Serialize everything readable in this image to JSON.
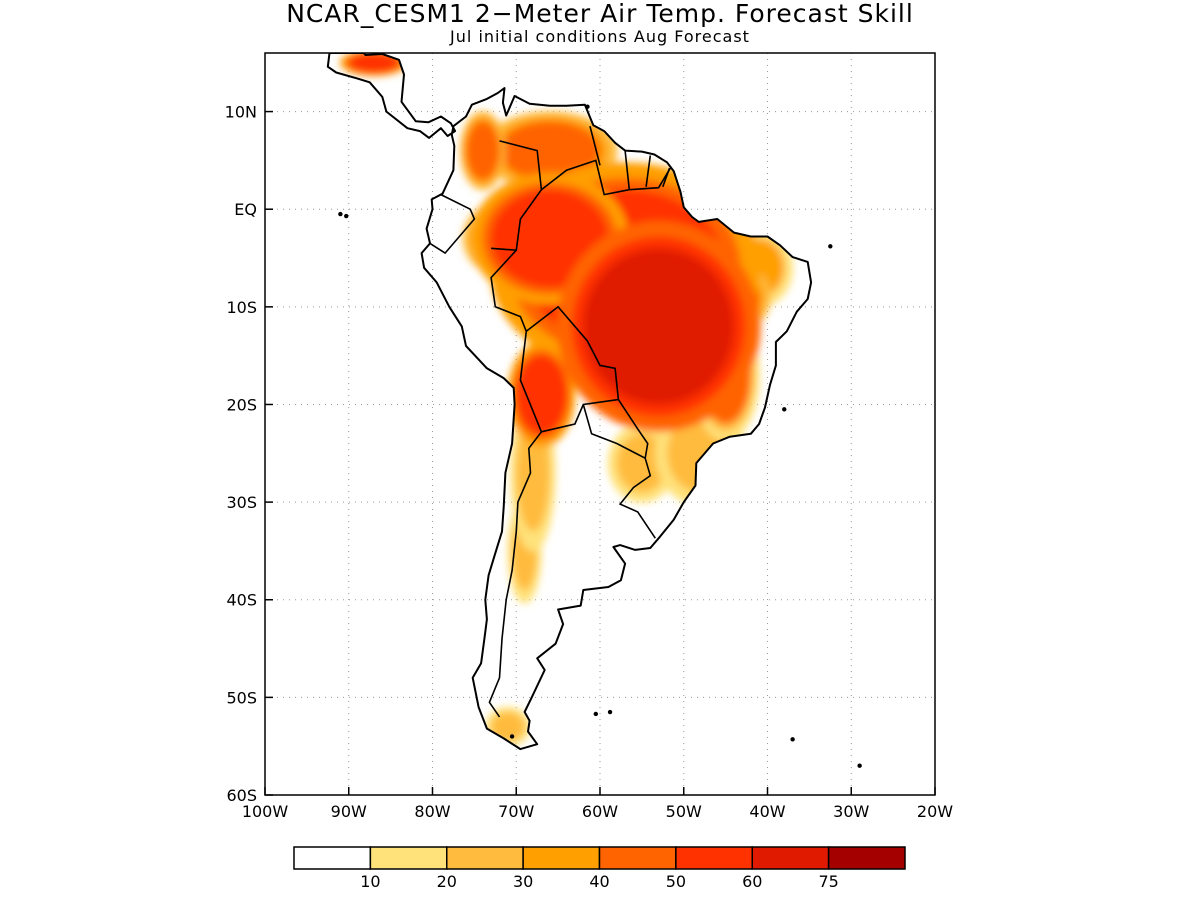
{
  "title": "NCAR_CESM1 2−Meter Air Temp. Forecast Skill",
  "subtitle": "Jul initial conditions  Aug Forecast",
  "chart_data": {
    "type": "heatmap",
    "map_region": "South America",
    "x_axis": {
      "range": [
        -100,
        -20
      ],
      "ticks": [
        {
          "value": -100,
          "label": "100W"
        },
        {
          "value": -90,
          "label": "90W"
        },
        {
          "value": -80,
          "label": "80W"
        },
        {
          "value": -70,
          "label": "70W"
        },
        {
          "value": -60,
          "label": "60W"
        },
        {
          "value": -50,
          "label": "50W"
        },
        {
          "value": -40,
          "label": "40W"
        },
        {
          "value": -30,
          "label": "30W"
        },
        {
          "value": -20,
          "label": "20W"
        }
      ]
    },
    "y_axis": {
      "range": [
        -60,
        16
      ],
      "ticks": [
        {
          "value": 10,
          "label": "10N"
        },
        {
          "value": 0,
          "label": "EQ"
        },
        {
          "value": -10,
          "label": "10S"
        },
        {
          "value": -20,
          "label": "20S"
        },
        {
          "value": -30,
          "label": "30S"
        },
        {
          "value": -40,
          "label": "40S"
        },
        {
          "value": -50,
          "label": "50S"
        },
        {
          "value": -60,
          "label": "60S"
        }
      ]
    },
    "grid": true,
    "colorbar": {
      "placement": "bottom",
      "colors": [
        "#ffffff",
        "#ffe27a",
        "#ffbb3d",
        "#ff9f00",
        "#ff6400",
        "#ff3200",
        "#e01a00",
        "#a50000"
      ],
      "labels": [
        "10",
        "20",
        "30",
        "40",
        "50",
        "60",
        "75"
      ]
    },
    "regions": [
      {
        "lon": -53,
        "lat": -12,
        "rx": 9,
        "ry": 8,
        "value": 65
      },
      {
        "lon": -57,
        "lat": -6,
        "rx": 12,
        "ry": 8,
        "value": 55
      },
      {
        "lon": -66,
        "lat": -3,
        "rx": 7,
        "ry": 5,
        "value": 58
      },
      {
        "lon": -52,
        "lat": -2,
        "rx": 6,
        "ry": 3,
        "value": 45
      },
      {
        "lon": -45,
        "lat": -9,
        "rx": 4,
        "ry": 3,
        "value": 45
      },
      {
        "lon": -45,
        "lat": -17,
        "rx": 3,
        "ry": 5,
        "value": 40
      },
      {
        "lon": -66,
        "lat": 6,
        "rx": 6,
        "ry": 3,
        "value": 45
      },
      {
        "lon": -67,
        "lat": -19,
        "rx": 3,
        "ry": 4,
        "value": 55
      },
      {
        "lon": -71,
        "lat": -3,
        "rx": 4,
        "ry": 3,
        "value": 45
      },
      {
        "lon": -57,
        "lat": -15,
        "rx": 4,
        "ry": 3,
        "value": 45
      },
      {
        "lon": -68,
        "lat": -27,
        "rx": 2,
        "ry": 6,
        "value": 22
      },
      {
        "lon": -69,
        "lat": -35,
        "rx": 1.5,
        "ry": 4,
        "value": 20
      },
      {
        "lon": -55,
        "lat": -26,
        "rx": 3,
        "ry": 3,
        "value": 22
      },
      {
        "lon": -48,
        "lat": -25,
        "rx": 4,
        "ry": 4,
        "value": 22
      },
      {
        "lon": -87,
        "lat": 15,
        "rx": 3,
        "ry": 1,
        "value": 55
      },
      {
        "lon": -71,
        "lat": -53,
        "rx": 2,
        "ry": 1.5,
        "value": 20
      },
      {
        "lon": -74,
        "lat": 6,
        "rx": 2,
        "ry": 3,
        "value": 45
      },
      {
        "lon": -41,
        "lat": -6,
        "rx": 3,
        "ry": 3,
        "value": 30
      }
    ]
  }
}
